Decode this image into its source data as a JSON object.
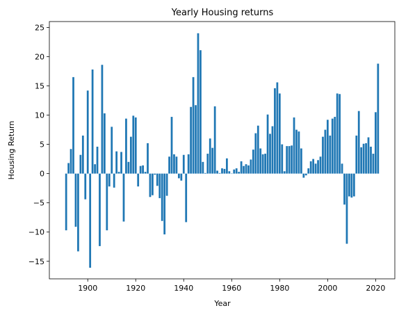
{
  "chart_data": {
    "type": "bar",
    "title": "Yearly Housing returns",
    "xlabel": "Year",
    "ylabel": "Housing Return",
    "xlim": [
      1884,
      2028
    ],
    "ylim": [
      -18,
      26
    ],
    "xticks": [
      1900,
      1920,
      1940,
      1960,
      1980,
      2000,
      2020
    ],
    "yticks": [
      -15,
      -10,
      -5,
      0,
      5,
      10,
      15,
      20,
      25
    ],
    "grid": false,
    "bar_color": "#1f77b4",
    "x": [
      1891,
      1892,
      1893,
      1894,
      1895,
      1896,
      1897,
      1898,
      1899,
      1900,
      1901,
      1902,
      1903,
      1904,
      1905,
      1906,
      1907,
      1908,
      1909,
      1910,
      1911,
      1912,
      1913,
      1914,
      1915,
      1916,
      1917,
      1918,
      1919,
      1920,
      1921,
      1922,
      1923,
      1924,
      1925,
      1926,
      1927,
      1928,
      1929,
      1930,
      1931,
      1932,
      1933,
      1934,
      1935,
      1936,
      1937,
      1938,
      1939,
      1940,
      1941,
      1942,
      1943,
      1944,
      1945,
      1946,
      1947,
      1948,
      1949,
      1950,
      1951,
      1952,
      1953,
      1954,
      1955,
      1956,
      1957,
      1958,
      1959,
      1960,
      1961,
      1962,
      1963,
      1964,
      1965,
      1966,
      1967,
      1968,
      1969,
      1970,
      1971,
      1972,
      1973,
      1974,
      1975,
      1976,
      1977,
      1978,
      1979,
      1980,
      1981,
      1982,
      1983,
      1984,
      1985,
      1986,
      1987,
      1988,
      1989,
      1990,
      1991,
      1992,
      1993,
      1994,
      1995,
      1996,
      1997,
      1998,
      1999,
      2000,
      2001,
      2002,
      2003,
      2004,
      2005,
      2006,
      2007,
      2008,
      2009,
      2010,
      2011,
      2012,
      2013,
      2014,
      2015,
      2016,
      2017,
      2018,
      2019,
      2020,
      2021
    ],
    "values": [
      -9.7,
      1.8,
      4.2,
      16.5,
      -9.1,
      -13.3,
      3.2,
      6.5,
      -4.4,
      14.2,
      -16.1,
      17.8,
      1.6,
      4.6,
      -12.4,
      18.6,
      10.3,
      -9.7,
      -2.2,
      8.0,
      -2.4,
      3.8,
      0.3,
      3.7,
      -8.2,
      9.4,
      2.0,
      6.3,
      9.9,
      9.6,
      -2.2,
      1.3,
      1.4,
      0.3,
      5.2,
      -4.0,
      -3.7,
      -0.2,
      -2.1,
      -4.2,
      -8.1,
      -10.4,
      -3.8,
      2.9,
      9.7,
      3.3,
      2.9,
      -0.8,
      -1.2,
      3.2,
      -8.3,
      3.3,
      11.4,
      16.5,
      11.7,
      24.0,
      21.1,
      2.0,
      0.1,
      3.4,
      6.0,
      4.4,
      11.5,
      0.5,
      0.1,
      0.9,
      0.8,
      2.6,
      0.4,
      0.0,
      0.7,
      0.9,
      0.3,
      2.1,
      1.3,
      1.6,
      1.4,
      2.4,
      4.1,
      6.9,
      8.2,
      4.3,
      3.3,
      3.4,
      10.1,
      6.8,
      8.1,
      14.6,
      15.6,
      13.7,
      5.0,
      0.4,
      4.7,
      4.7,
      4.8,
      9.6,
      7.5,
      7.2,
      4.3,
      -0.7,
      -0.3,
      0.9,
      2.1,
      2.5,
      1.7,
      2.3,
      2.9,
      6.3,
      7.5,
      9.2,
      6.5,
      9.4,
      9.7,
      13.7,
      13.6,
      1.7,
      -5.3,
      -12.0,
      -3.9,
      -4.1,
      -3.9,
      6.5,
      10.7,
      4.5,
      5.1,
      5.2,
      6.2,
      4.6,
      3.4,
      10.5,
      18.8
    ]
  }
}
